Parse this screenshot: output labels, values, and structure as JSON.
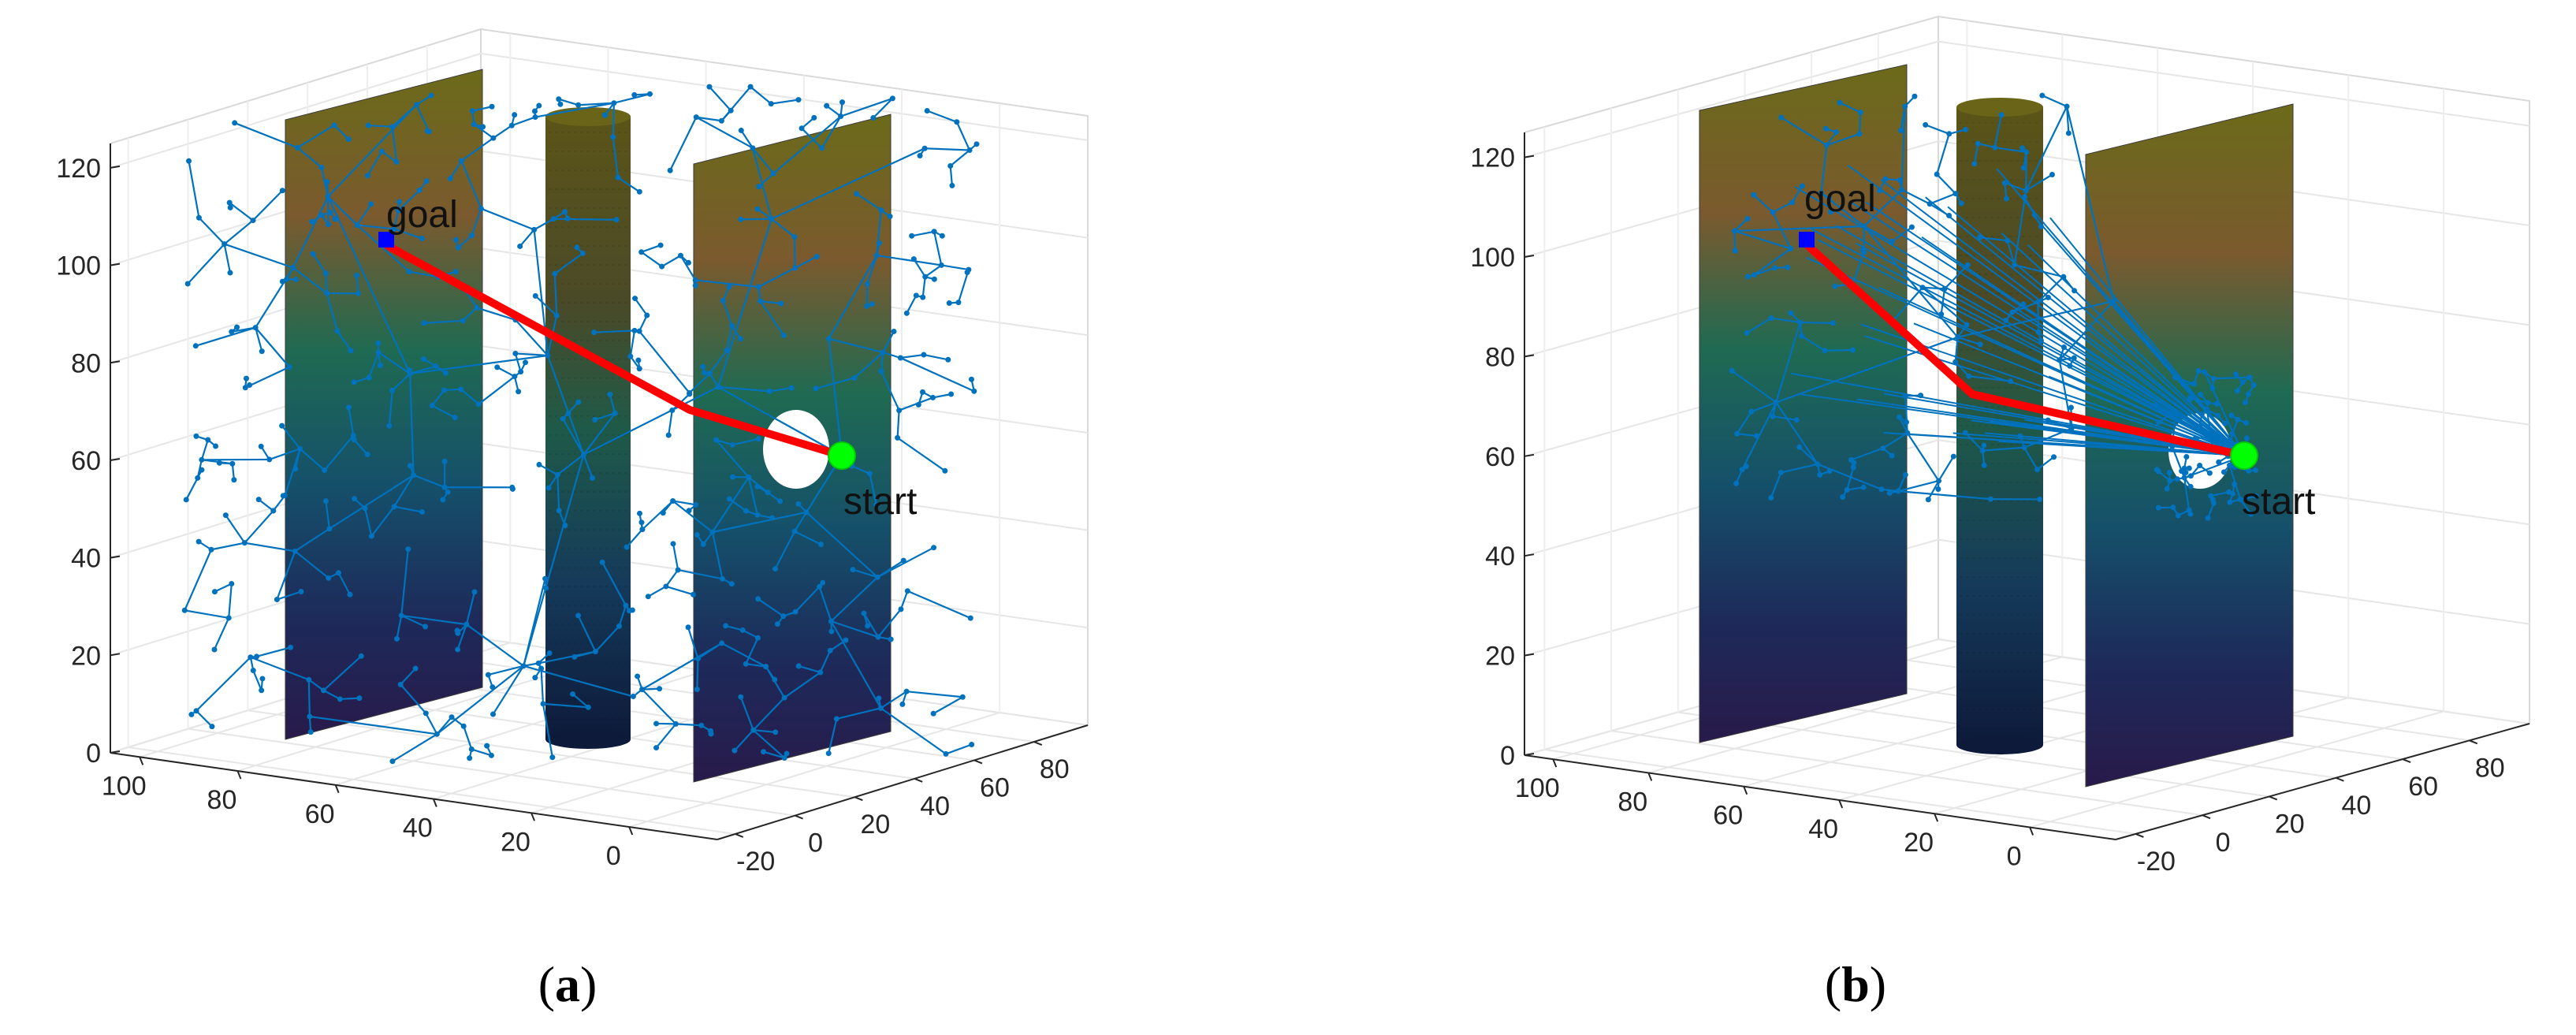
{
  "figure": {
    "panels": [
      {
        "id": "a",
        "caption_open": "(",
        "caption_letter": "a",
        "caption_close": ")",
        "start_label": "start",
        "goal_label": "goal"
      },
      {
        "id": "b",
        "caption_open": "(",
        "caption_letter": "b",
        "caption_close": ")",
        "start_label": "start",
        "goal_label": "goal"
      }
    ]
  },
  "chart_data": [
    {
      "type": "scatter",
      "title": "",
      "xlabel": "",
      "ylabel": "",
      "zlabel": "",
      "view": "3d",
      "grid": true,
      "xticks": [
        "100",
        "80",
        "60",
        "40",
        "20",
        "0"
      ],
      "yticks": [
        "-20",
        "0",
        "20",
        "40",
        "60",
        "80"
      ],
      "zticks": [
        "0",
        "20",
        "40",
        "60",
        "80",
        "100",
        "120"
      ],
      "xlim": [
        -10,
        100
      ],
      "ylim": [
        -30,
        85
      ],
      "zlim": [
        0,
        125
      ],
      "obstacles": [
        "wall",
        "cylinder",
        "wall"
      ],
      "start": {
        "label": "start",
        "z": 57,
        "color": "#00ff00"
      },
      "goal": {
        "label": "goal",
        "z": 97,
        "color": "#0000ff"
      },
      "tree_color": "#0072bd",
      "path_color": "#ff0000",
      "tree_density": "dense"
    },
    {
      "type": "scatter",
      "title": "",
      "xlabel": "",
      "ylabel": "",
      "zlabel": "",
      "view": "3d",
      "grid": true,
      "xticks": [
        "100",
        "80",
        "60",
        "40",
        "20",
        "0"
      ],
      "yticks": [
        "-20",
        "0",
        "20",
        "40",
        "60",
        "80"
      ],
      "zticks": [
        "0",
        "20",
        "40",
        "60",
        "80",
        "100",
        "120"
      ],
      "xlim": [
        -10,
        100
      ],
      "ylim": [
        -30,
        85
      ],
      "zlim": [
        0,
        125
      ],
      "obstacles": [
        "wall",
        "cylinder",
        "wall"
      ],
      "start": {
        "label": "start",
        "z": 57,
        "color": "#00ff00"
      },
      "goal": {
        "label": "goal",
        "z": 97,
        "color": "#0000ff"
      },
      "tree_color": "#0072bd",
      "path_color": "#ff0000",
      "tree_density": "sparse"
    }
  ]
}
